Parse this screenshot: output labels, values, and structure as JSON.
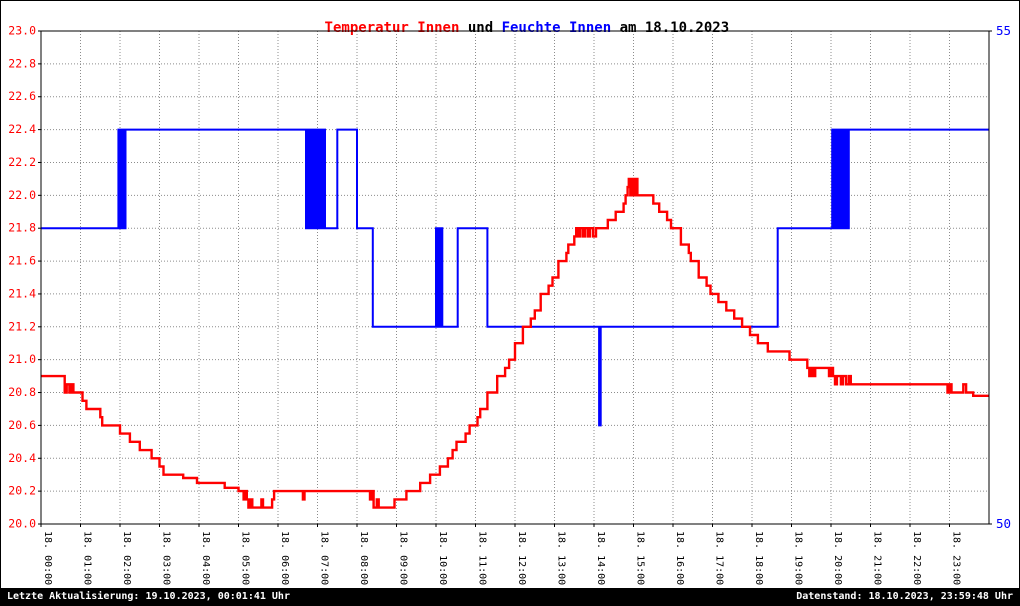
{
  "title": {
    "temp_label": "Temperatur Innen",
    "connector": " und ",
    "humidity_label": "Feuchte Innen",
    "date_suffix": " am 18.10.2023"
  },
  "footer": {
    "last_update": "Letzte Aktualisierung: 19.10.2023, 00:01:41 Uhr",
    "data_state": "Datenstand: 18.10.2023, 23:59:48 Uhr"
  },
  "colors": {
    "temperature": "#ff0000",
    "humidity": "#0000ff",
    "grid": "#8c8c8c",
    "axis": "#000000",
    "footer_bg": "#000000",
    "footer_text": "#ffffff",
    "background": "#ffffff"
  },
  "chart_data": {
    "type": "line",
    "title": "Temperatur Innen und Feuchte Innen am 18.10.2023",
    "grid": true,
    "legend": false,
    "x_axis": {
      "range": [
        0,
        24
      ],
      "tick_interval": 1,
      "labels": [
        "18. 00:00",
        "18. 01:00",
        "18. 02:00",
        "18. 03:00",
        "18. 04:00",
        "18. 05:00",
        "18. 06:00",
        "18. 07:00",
        "18. 08:00",
        "18. 09:00",
        "18. 10:00",
        "18. 11:00",
        "18. 12:00",
        "18. 13:00",
        "18. 14:00",
        "18. 15:00",
        "18. 16:00",
        "18. 17:00",
        "18. 18:00",
        "18. 19:00",
        "18. 20:00",
        "18. 21:00",
        "18. 22:00",
        "18. 23:00"
      ]
    },
    "y_left": {
      "range": [
        20.0,
        23.0
      ],
      "color": "#ff0000",
      "tick_labels": [
        "23.0",
        "22.8",
        "22.6",
        "22.4",
        "22.2",
        "22.0",
        "21.8",
        "21.6",
        "21.4",
        "21.2",
        "21.0",
        "20.8",
        "20.6",
        "20.4",
        "20.2",
        "20.0"
      ]
    },
    "y_right": {
      "range": [
        50,
        55
      ],
      "color": "#0000ff",
      "tick_labels": [
        "55",
        "50"
      ]
    },
    "series": [
      {
        "name": "Feuchte Innen",
        "axis": "right",
        "color": "#0000ff",
        "points": [
          [
            0,
            53
          ],
          [
            1.93,
            53
          ],
          [
            1.96,
            54
          ],
          [
            1.99,
            53
          ],
          [
            2.02,
            54
          ],
          [
            2.05,
            53
          ],
          [
            2.08,
            54
          ],
          [
            2.11,
            53
          ],
          [
            2.14,
            54
          ],
          [
            6.68,
            54
          ],
          [
            6.71,
            53
          ],
          [
            6.75,
            54
          ],
          [
            6.79,
            53
          ],
          [
            6.83,
            54
          ],
          [
            6.87,
            53
          ],
          [
            6.91,
            54
          ],
          [
            6.95,
            53
          ],
          [
            6.99,
            54
          ],
          [
            7.03,
            53
          ],
          [
            7.07,
            54
          ],
          [
            7.11,
            53
          ],
          [
            7.15,
            54
          ],
          [
            7.19,
            53
          ],
          [
            7.45,
            53
          ],
          [
            7.5,
            54
          ],
          [
            7.95,
            54
          ],
          [
            8.0,
            53
          ],
          [
            8.35,
            53
          ],
          [
            8.4,
            52
          ],
          [
            9.97,
            52
          ],
          [
            10.0,
            53
          ],
          [
            10.03,
            52
          ],
          [
            10.07,
            53
          ],
          [
            10.1,
            52
          ],
          [
            10.13,
            53
          ],
          [
            10.16,
            52
          ],
          [
            10.5,
            52
          ],
          [
            10.55,
            53
          ],
          [
            11.25,
            53
          ],
          [
            11.3,
            52
          ],
          [
            14.1,
            52
          ],
          [
            14.13,
            51
          ],
          [
            14.17,
            52
          ],
          [
            18.6,
            52
          ],
          [
            18.65,
            53
          ],
          [
            20.0,
            53
          ],
          [
            20.03,
            54
          ],
          [
            20.06,
            53
          ],
          [
            20.09,
            54
          ],
          [
            20.12,
            53
          ],
          [
            20.15,
            54
          ],
          [
            20.18,
            53
          ],
          [
            20.21,
            54
          ],
          [
            20.24,
            53
          ],
          [
            20.27,
            54
          ],
          [
            20.3,
            53
          ],
          [
            20.33,
            54
          ],
          [
            20.36,
            53
          ],
          [
            20.39,
            54
          ],
          [
            20.42,
            53
          ],
          [
            20.45,
            54
          ],
          [
            24,
            54
          ]
        ]
      },
      {
        "name": "Temperatur Innen",
        "axis": "left",
        "color": "#ff0000",
        "points": [
          [
            0,
            20.9
          ],
          [
            0.55,
            20.9
          ],
          [
            0.6,
            20.8
          ],
          [
            0.65,
            20.85
          ],
          [
            0.72,
            20.8
          ],
          [
            0.78,
            20.85
          ],
          [
            0.82,
            20.8
          ],
          [
            1.0,
            20.8
          ],
          [
            1.05,
            20.75
          ],
          [
            1.15,
            20.7
          ],
          [
            1.45,
            20.7
          ],
          [
            1.5,
            20.65
          ],
          [
            1.55,
            20.6
          ],
          [
            1.95,
            20.6
          ],
          [
            2.0,
            20.55
          ],
          [
            2.2,
            20.55
          ],
          [
            2.25,
            20.5
          ],
          [
            2.45,
            20.5
          ],
          [
            2.5,
            20.45
          ],
          [
            2.75,
            20.45
          ],
          [
            2.8,
            20.4
          ],
          [
            2.95,
            20.4
          ],
          [
            3.0,
            20.35
          ],
          [
            3.1,
            20.3
          ],
          [
            3.55,
            20.3
          ],
          [
            3.6,
            20.28
          ],
          [
            3.9,
            20.28
          ],
          [
            3.95,
            20.25
          ],
          [
            4.6,
            20.25
          ],
          [
            4.65,
            20.22
          ],
          [
            4.95,
            20.22
          ],
          [
            5.0,
            20.2
          ],
          [
            5.1,
            20.2
          ],
          [
            5.13,
            20.15
          ],
          [
            5.17,
            20.2
          ],
          [
            5.21,
            20.15
          ],
          [
            5.25,
            20.1
          ],
          [
            5.3,
            20.15
          ],
          [
            5.35,
            20.1
          ],
          [
            5.55,
            20.1
          ],
          [
            5.58,
            20.15
          ],
          [
            5.62,
            20.1
          ],
          [
            5.8,
            20.1
          ],
          [
            5.85,
            20.15
          ],
          [
            5.9,
            20.2
          ],
          [
            6.6,
            20.2
          ],
          [
            6.63,
            20.15
          ],
          [
            6.67,
            20.2
          ],
          [
            8.3,
            20.2
          ],
          [
            8.33,
            20.15
          ],
          [
            8.38,
            20.2
          ],
          [
            8.42,
            20.1
          ],
          [
            8.5,
            20.15
          ],
          [
            8.55,
            20.1
          ],
          [
            8.9,
            20.1
          ],
          [
            8.95,
            20.15
          ],
          [
            9.2,
            20.15
          ],
          [
            9.25,
            20.2
          ],
          [
            9.55,
            20.2
          ],
          [
            9.6,
            20.25
          ],
          [
            9.8,
            20.25
          ],
          [
            9.85,
            20.3
          ],
          [
            10.05,
            20.3
          ],
          [
            10.1,
            20.35
          ],
          [
            10.25,
            20.35
          ],
          [
            10.3,
            20.4
          ],
          [
            10.42,
            20.45
          ],
          [
            10.52,
            20.5
          ],
          [
            10.7,
            20.5
          ],
          [
            10.75,
            20.55
          ],
          [
            10.85,
            20.6
          ],
          [
            11.0,
            20.6
          ],
          [
            11.05,
            20.65
          ],
          [
            11.12,
            20.7
          ],
          [
            11.25,
            20.7
          ],
          [
            11.3,
            20.8
          ],
          [
            11.5,
            20.8
          ],
          [
            11.55,
            20.9
          ],
          [
            11.7,
            20.9
          ],
          [
            11.75,
            20.95
          ],
          [
            11.85,
            21.0
          ],
          [
            11.95,
            21.0
          ],
          [
            12.0,
            21.1
          ],
          [
            12.15,
            21.1
          ],
          [
            12.2,
            21.2
          ],
          [
            12.35,
            21.2
          ],
          [
            12.4,
            21.25
          ],
          [
            12.5,
            21.3
          ],
          [
            12.6,
            21.3
          ],
          [
            12.65,
            21.4
          ],
          [
            12.8,
            21.4
          ],
          [
            12.85,
            21.45
          ],
          [
            12.95,
            21.5
          ],
          [
            13.05,
            21.5
          ],
          [
            13.1,
            21.6
          ],
          [
            13.25,
            21.6
          ],
          [
            13.3,
            21.65
          ],
          [
            13.35,
            21.7
          ],
          [
            13.45,
            21.7
          ],
          [
            13.5,
            21.75
          ],
          [
            13.55,
            21.8
          ],
          [
            13.6,
            21.75
          ],
          [
            13.65,
            21.8
          ],
          [
            13.72,
            21.75
          ],
          [
            13.78,
            21.8
          ],
          [
            13.85,
            21.75
          ],
          [
            13.9,
            21.8
          ],
          [
            13.98,
            21.75
          ],
          [
            14.05,
            21.8
          ],
          [
            14.3,
            21.8
          ],
          [
            14.35,
            21.85
          ],
          [
            14.5,
            21.85
          ],
          [
            14.55,
            21.9
          ],
          [
            14.7,
            21.9
          ],
          [
            14.75,
            21.95
          ],
          [
            14.8,
            22.0
          ],
          [
            14.85,
            22.05
          ],
          [
            14.88,
            22.1
          ],
          [
            14.92,
            22.0
          ],
          [
            14.96,
            22.1
          ],
          [
            15.0,
            22.0
          ],
          [
            15.05,
            22.1
          ],
          [
            15.1,
            22.0
          ],
          [
            15.45,
            22.0
          ],
          [
            15.5,
            21.95
          ],
          [
            15.6,
            21.95
          ],
          [
            15.65,
            21.9
          ],
          [
            15.8,
            21.9
          ],
          [
            15.85,
            21.85
          ],
          [
            15.95,
            21.8
          ],
          [
            16.15,
            21.8
          ],
          [
            16.2,
            21.7
          ],
          [
            16.35,
            21.7
          ],
          [
            16.4,
            21.65
          ],
          [
            16.45,
            21.6
          ],
          [
            16.6,
            21.6
          ],
          [
            16.65,
            21.5
          ],
          [
            16.8,
            21.5
          ],
          [
            16.85,
            21.45
          ],
          [
            16.95,
            21.4
          ],
          [
            17.1,
            21.4
          ],
          [
            17.15,
            21.35
          ],
          [
            17.3,
            21.35
          ],
          [
            17.35,
            21.3
          ],
          [
            17.5,
            21.3
          ],
          [
            17.55,
            21.25
          ],
          [
            17.7,
            21.25
          ],
          [
            17.75,
            21.2
          ],
          [
            17.9,
            21.2
          ],
          [
            17.95,
            21.15
          ],
          [
            18.1,
            21.15
          ],
          [
            18.15,
            21.1
          ],
          [
            18.35,
            21.1
          ],
          [
            18.4,
            21.05
          ],
          [
            18.9,
            21.05
          ],
          [
            18.95,
            21.0
          ],
          [
            19.35,
            21.0
          ],
          [
            19.4,
            20.95
          ],
          [
            19.45,
            20.9
          ],
          [
            19.5,
            20.95
          ],
          [
            19.55,
            20.9
          ],
          [
            19.6,
            20.95
          ],
          [
            19.9,
            20.95
          ],
          [
            19.95,
            20.9
          ],
          [
            20.0,
            20.95
          ],
          [
            20.05,
            20.9
          ],
          [
            20.1,
            20.85
          ],
          [
            20.15,
            20.9
          ],
          [
            20.25,
            20.85
          ],
          [
            20.3,
            20.9
          ],
          [
            20.38,
            20.85
          ],
          [
            20.45,
            20.9
          ],
          [
            20.5,
            20.85
          ],
          [
            22.9,
            20.85
          ],
          [
            22.95,
            20.8
          ],
          [
            23.0,
            20.85
          ],
          [
            23.05,
            20.8
          ],
          [
            23.3,
            20.8
          ],
          [
            23.35,
            20.85
          ],
          [
            23.42,
            20.8
          ],
          [
            23.55,
            20.8
          ],
          [
            23.6,
            20.78
          ],
          [
            24,
            20.78
          ]
        ]
      }
    ]
  }
}
